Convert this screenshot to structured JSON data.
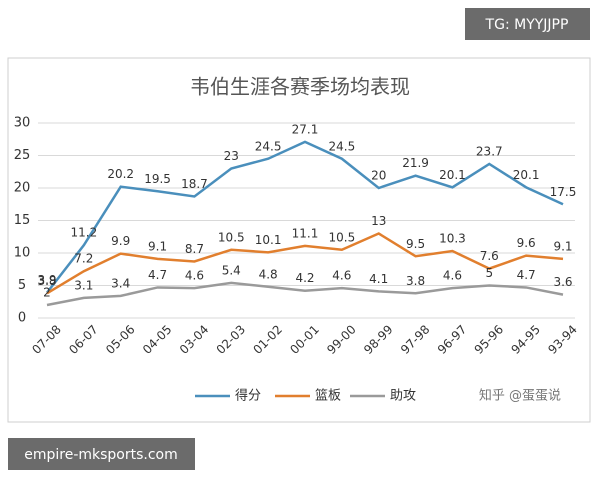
{
  "chart_data": {
    "type": "line",
    "title": "韦伯生涯各赛季场均表现",
    "categories": [
      "07-08",
      "06-07",
      "05-06",
      "04-05",
      "03-04",
      "02-03",
      "01-02",
      "00-01",
      "99-00",
      "98-99",
      "97-98",
      "96-97",
      "95-96",
      "94-95",
      "93-94"
    ],
    "series": [
      {
        "name": "得分",
        "color": "#4a8fbc",
        "values": [
          3.9,
          11.2,
          20.2,
          19.5,
          18.7,
          23,
          24.5,
          27.1,
          24.5,
          20,
          21.9,
          20.1,
          23.7,
          20.1,
          17.5
        ]
      },
      {
        "name": "篮板",
        "color": "#e17f2e",
        "values": [
          3.8,
          7.2,
          9.9,
          9.1,
          8.7,
          10.5,
          10.1,
          11.1,
          10.5,
          13,
          9.5,
          10.3,
          7.6,
          9.6,
          9.1
        ]
      },
      {
        "name": "助攻",
        "color": "#9a9a9a",
        "values": [
          2,
          3.1,
          3.4,
          4.7,
          4.6,
          5.4,
          4.8,
          4.2,
          4.6,
          4.1,
          3.8,
          4.6,
          5,
          4.7,
          3.6
        ]
      }
    ],
    "ylim": [
      0,
      30
    ],
    "yticks": [
      0,
      5,
      10,
      15,
      20,
      25,
      30
    ],
    "grid": true,
    "legend": "bottom"
  },
  "overlays": {
    "top_tag": "TG: MYYJJPP",
    "bottom_tag": "empire-mksports.com",
    "source": "知乎 @蛋蛋说"
  }
}
